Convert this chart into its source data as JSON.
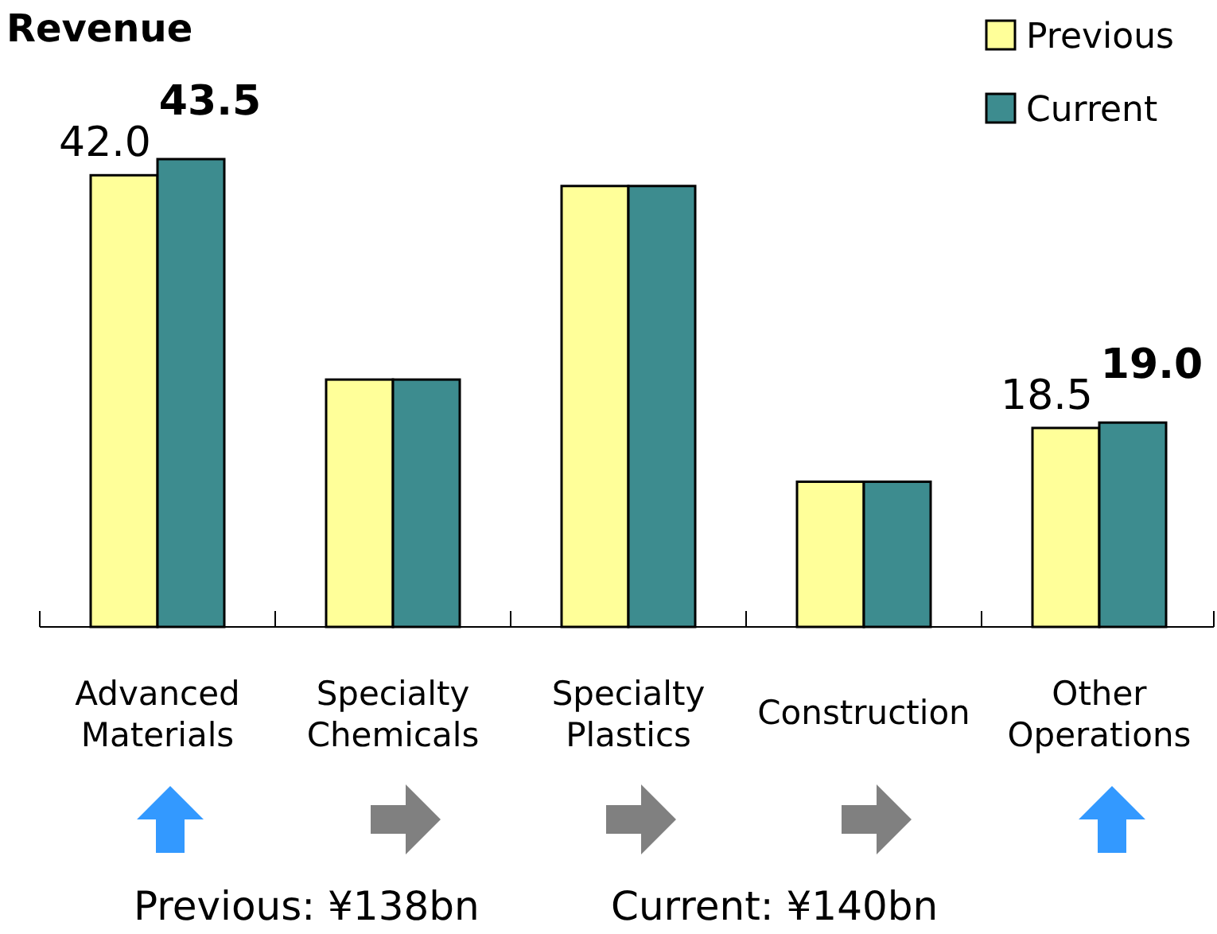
{
  "chart_data": {
    "type": "bar",
    "title": "Revenue",
    "categories": [
      "Advanced Materials",
      "Specialty Chemicals",
      "Specialty Plastics",
      "Construction",
      "Other Operations"
    ],
    "series": [
      {
        "name": "Previous",
        "color": "#ffff99",
        "values": [
          42.0,
          23.0,
          41.0,
          13.5,
          18.5
        ],
        "value_labels": [
          "42.0",
          null,
          null,
          null,
          "18.5"
        ]
      },
      {
        "name": "Current",
        "color": "#3d8c8f",
        "values": [
          43.5,
          23.0,
          41.0,
          13.5,
          19.0
        ],
        "value_labels": [
          "43.5",
          null,
          null,
          null,
          "19.0"
        ]
      }
    ],
    "legend": "top right",
    "annotations": [
      "Previous: ¥138bn",
      "Current: ¥140bn"
    ]
  }
}
